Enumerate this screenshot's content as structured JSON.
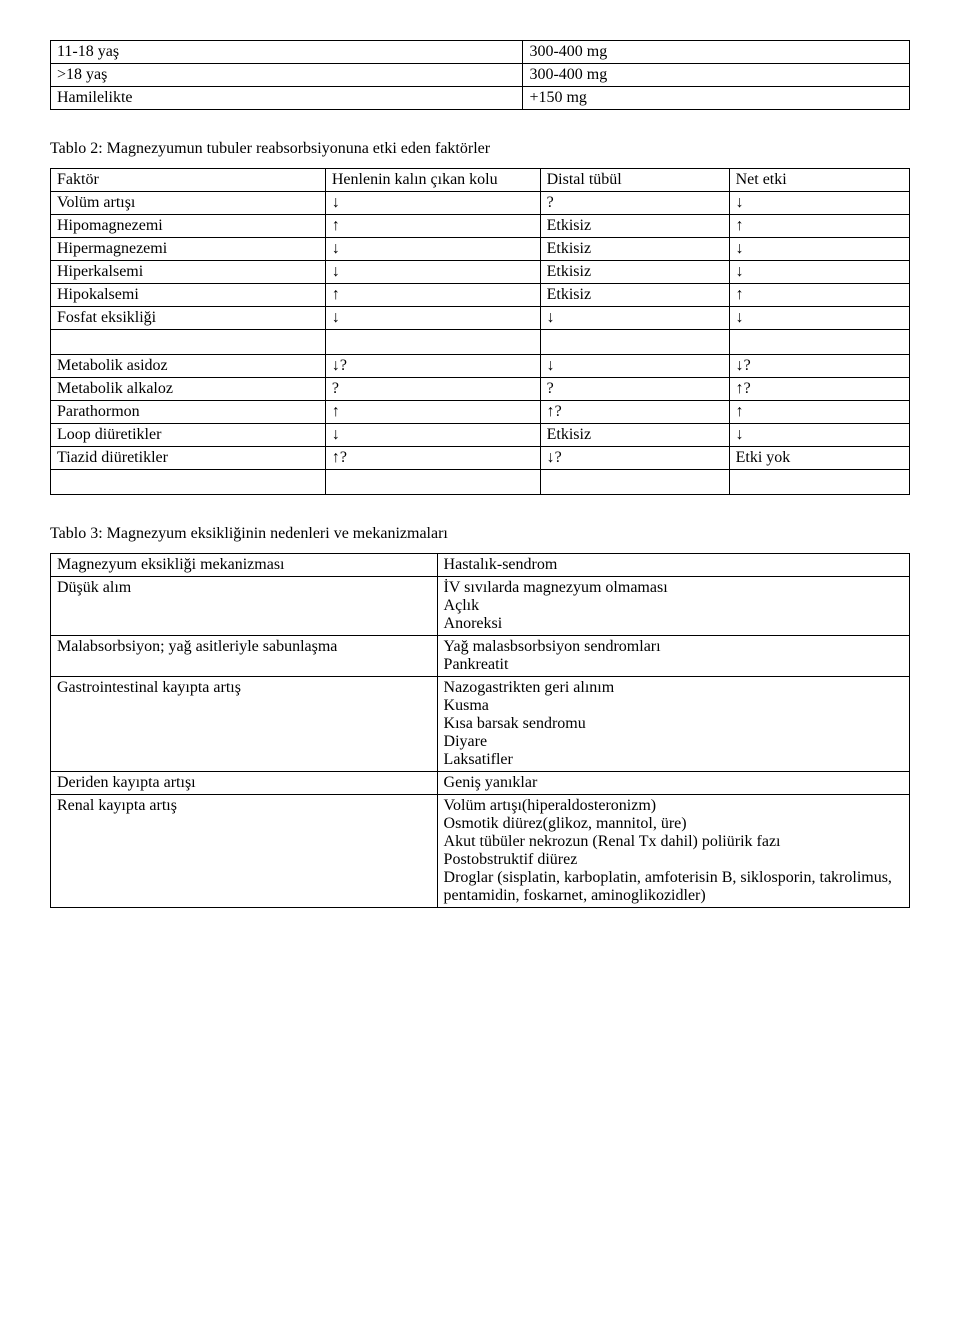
{
  "table1": {
    "rows": [
      {
        "age": "11-18 yaş",
        "dose": "300-400 mg"
      },
      {
        "age": ">18 yaş",
        "dose": "300-400 mg"
      },
      {
        "age": "Hamilelikte",
        "dose": "+150 mg"
      }
    ]
  },
  "table2": {
    "caption": "Tablo 2: Magnezyumun tubuler reabsorbsiyonuna etki eden faktörler",
    "headers": {
      "c1": "Faktör",
      "c2": "Henlenin kalın çıkan kolu",
      "c3": "Distal tübül",
      "c4": "Net etki"
    },
    "rows_a": [
      {
        "c1": "Volüm artışı",
        "c2": "↓",
        "c3": "?",
        "c4": "↓"
      },
      {
        "c1": "Hipomagnezemi",
        "c2": "↑",
        "c3": "Etkisiz",
        "c4": "↑"
      },
      {
        "c1": "Hipermagnezemi",
        "c2": "↓",
        "c3": "Etkisiz",
        "c4": "↓"
      },
      {
        "c1": "Hiperkalsemi",
        "c2": "↓",
        "c3": "Etkisiz",
        "c4": "↓"
      },
      {
        "c1": "Hipokalsemi",
        "c2": "↑",
        "c3": "Etkisiz",
        "c4": "↑"
      },
      {
        "c1": "Fosfat eksikliği",
        "c2": "↓",
        "c3": "↓",
        "c4": "↓"
      }
    ],
    "rows_b": [
      {
        "c1": "Metabolik asidoz",
        "c2": "↓?",
        "c3": "↓",
        "c4": "↓?"
      },
      {
        "c1": "Metabolik alkaloz",
        "c2": "?",
        "c3": "?",
        "c4": "↑?"
      },
      {
        "c1": "Parathormon",
        "c2": "↑",
        "c3": "↑?",
        "c4": "↑"
      },
      {
        "c1": "Loop diüretikler",
        "c2": "↓",
        "c3": "Etkisiz",
        "c4": "↓"
      },
      {
        "c1": "Tiazid diüretikler",
        "c2": "↑?",
        "c3": "↓?",
        "c4": "Etki yok"
      }
    ]
  },
  "table3": {
    "caption": "Tablo 3: Magnezyum eksikliğinin nedenleri ve mekanizmaları",
    "headers": {
      "left": "Magnezyum eksikliği mekanizması",
      "right": "Hastalık-sendrom"
    },
    "rows": [
      {
        "left": "Düşük alım",
        "right": "İV sıvılarda magnezyum olmaması\nAçlık\nAnoreksi"
      },
      {
        "left": "Malabsorbsiyon; yağ asitleriyle sabunlaşma",
        "right": "Yağ malasbsorbsiyon sendromları\nPankreatit"
      },
      {
        "left": "Gastrointestinal kayıpta artış",
        "right": "Nazogastrikten geri alınım\nKusma\nKısa barsak sendromu\nDiyare\nLaksatifler"
      },
      {
        "left": "Deriden kayıpta artışı",
        "right": "Geniş yanıklar"
      },
      {
        "left": "Renal kayıpta artış",
        "right": "Volüm artışı(hiperaldosteronizm)\nOsmotik diürez(glikoz, mannitol, üre)\nAkut tübüler nekrozun (Renal Tx dahil) poliürik fazı\nPostobstruktif diürez\nDroglar (sisplatin, karboplatin, amfoterisin B, siklosporin, takrolimus, pentamidin, foskarnet, aminoglikozidler)"
      }
    ]
  }
}
